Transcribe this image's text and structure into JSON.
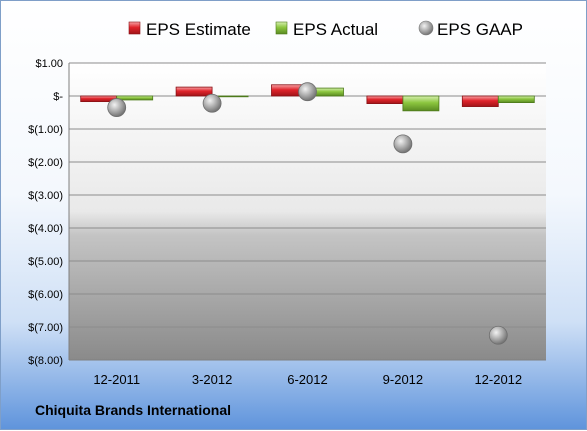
{
  "chart_data": {
    "type": "bar",
    "categories": [
      "12-2011",
      "3-2012",
      "6-2012",
      "9-2012",
      "12-2012"
    ],
    "series": [
      {
        "name": "EPS Estimate",
        "kind": "bar",
        "color": "#e0242b",
        "values": [
          -0.17,
          0.27,
          0.34,
          -0.23,
          -0.32
        ]
      },
      {
        "name": "EPS Actual",
        "kind": "bar",
        "color": "#8cc63f",
        "values": [
          -0.12,
          0.0,
          0.24,
          -0.45,
          -0.2
        ]
      },
      {
        "name": "EPS GAAP",
        "kind": "marker",
        "color": "#a8a8a8",
        "values": [
          -0.35,
          -0.22,
          0.13,
          -1.45,
          -7.25
        ]
      }
    ],
    "yticks": [
      "$1.00",
      "$-",
      "$(1.00)",
      "$(2.00)",
      "$(3.00)",
      "$(4.00)",
      "$(5.00)",
      "$(6.00)",
      "$(7.00)",
      "$(8.00)"
    ],
    "ylim": [
      -8,
      1
    ],
    "grid": true,
    "legend_position": "top"
  },
  "company": "Chiquita Brands International"
}
